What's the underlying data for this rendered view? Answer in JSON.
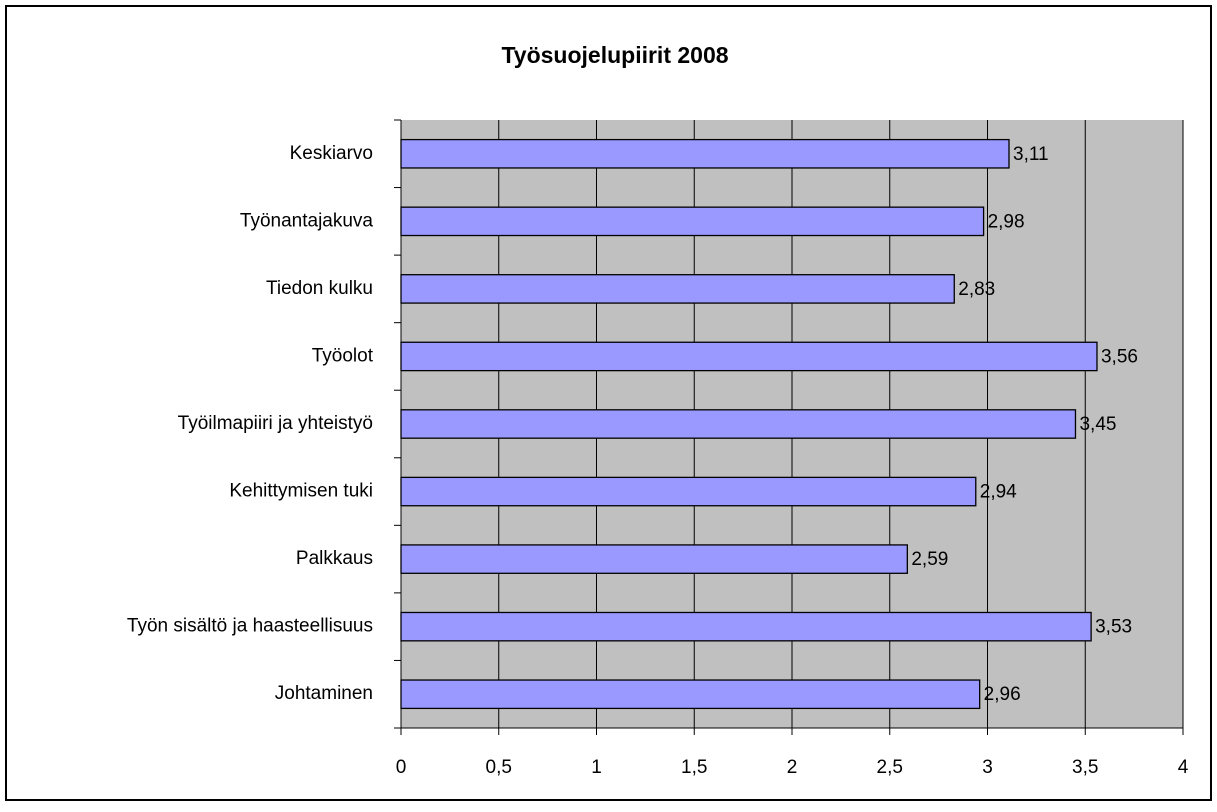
{
  "chart_data": {
    "type": "bar",
    "orientation": "horizontal",
    "title": "Työsuojelupiirit 2008",
    "categories": [
      "Keskiarvo",
      "Työnantajakuva",
      "Tiedon kulku",
      "Työolot",
      "Työilmapiiri ja yhteistyö",
      "Kehittymisen tuki",
      "Palkkaus",
      "Työn sisältö ja haasteellisuus",
      "Johtaminen"
    ],
    "values": [
      3.11,
      2.98,
      2.83,
      3.56,
      3.45,
      2.94,
      2.59,
      3.53,
      2.96
    ],
    "value_labels": [
      "3,11",
      "2,98",
      "2,83",
      "3,56",
      "3,45",
      "2,94",
      "2,59",
      "3,53",
      "2,96"
    ],
    "color": "#9999ff",
    "xlim": [
      0,
      4
    ],
    "xticks": [
      0,
      {
        "value": 0.5,
        "label": "0,5"
      },
      1,
      {
        "value": 1.5,
        "label": "1,5"
      },
      2,
      {
        "value": 2.5,
        "label": "2,5"
      },
      3,
      {
        "value": 3.5,
        "label": "3,5"
      },
      4
    ],
    "grid": true
  }
}
